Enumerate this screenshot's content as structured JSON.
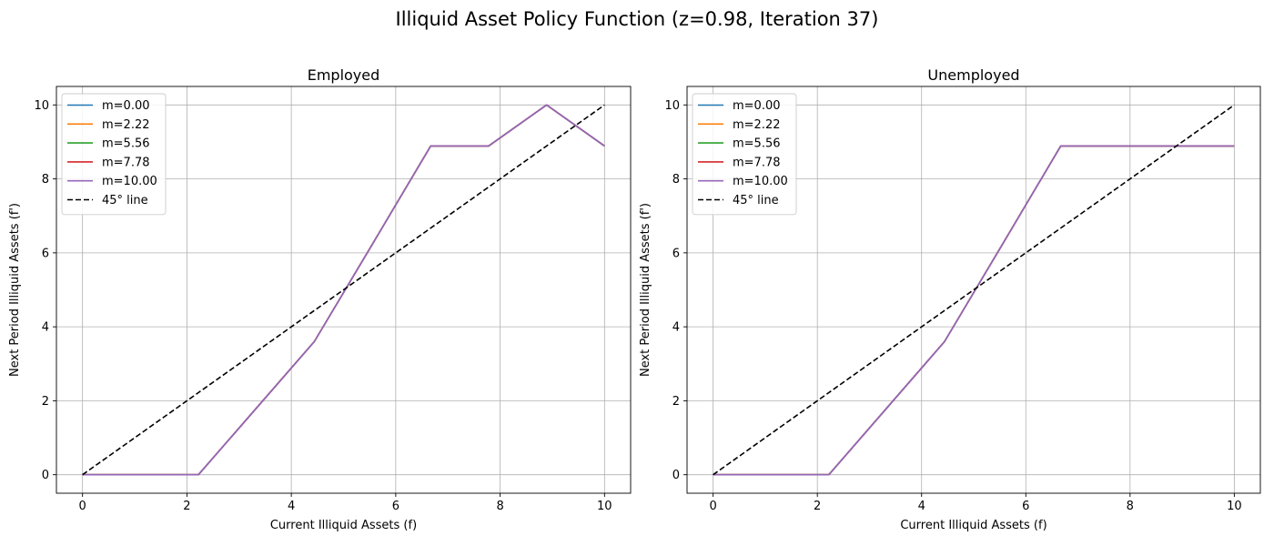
{
  "figure": {
    "suptitle": "Illiquid Asset Policy Function (z=0.98, Iteration 37)"
  },
  "chart_data": [
    {
      "type": "line",
      "title": "Employed",
      "xlabel": "Current Illiquid Assets (f)",
      "ylabel": "Next Period Illiquid Assets (f')",
      "xlim": [
        -0.5,
        10.5
      ],
      "ylim": [
        -0.5,
        10.5
      ],
      "xticks": [
        0,
        2,
        4,
        6,
        8,
        10
      ],
      "yticks": [
        0,
        2,
        4,
        6,
        8,
        10
      ],
      "grid": true,
      "legend_position": "upper-left",
      "series": [
        {
          "name": "m=0.00",
          "color": "#1f77b4",
          "style": "solid",
          "x": [
            0,
            1.11,
            2.22,
            3.33,
            4.44,
            5.56,
            6.67,
            7.78,
            8.89,
            10
          ],
          "y": [
            0,
            0,
            0,
            1.8,
            3.6,
            6.25,
            8.89,
            8.89,
            10,
            8.89
          ]
        },
        {
          "name": "m=2.22",
          "color": "#ff7f0e",
          "style": "solid",
          "x": [
            0,
            1.11,
            2.22,
            3.33,
            4.44,
            5.56,
            6.67,
            7.78,
            8.89,
            10
          ],
          "y": [
            0,
            0,
            0,
            1.8,
            3.6,
            6.25,
            8.89,
            8.89,
            10,
            8.89
          ]
        },
        {
          "name": "m=5.56",
          "color": "#2ca02c",
          "style": "solid",
          "x": [
            0,
            1.11,
            2.22,
            3.33,
            4.44,
            5.56,
            6.67,
            7.78,
            8.89,
            10
          ],
          "y": [
            0,
            0,
            0,
            1.8,
            3.6,
            6.25,
            8.89,
            8.89,
            10,
            8.89
          ]
        },
        {
          "name": "m=7.78",
          "color": "#d62728",
          "style": "solid",
          "x": [
            0,
            1.11,
            2.22,
            3.33,
            4.44,
            5.56,
            6.67,
            7.78,
            8.89,
            10
          ],
          "y": [
            0,
            0,
            0,
            1.8,
            3.6,
            6.25,
            8.89,
            8.89,
            10,
            8.89
          ]
        },
        {
          "name": "m=10.00",
          "color": "#9467bd",
          "style": "solid",
          "x": [
            0,
            1.11,
            2.22,
            3.33,
            4.44,
            5.56,
            6.67,
            7.78,
            8.89,
            10
          ],
          "y": [
            0,
            0,
            0,
            1.8,
            3.6,
            6.25,
            8.89,
            8.89,
            10,
            8.89
          ]
        },
        {
          "name": "45° line",
          "color": "#000000",
          "style": "dashed",
          "x": [
            0,
            10
          ],
          "y": [
            0,
            10
          ]
        }
      ]
    },
    {
      "type": "line",
      "title": "Unemployed",
      "xlabel": "Current Illiquid Assets (f)",
      "ylabel": "Next Period Illiquid Assets (f')",
      "xlim": [
        -0.5,
        10.5
      ],
      "ylim": [
        -0.5,
        10.5
      ],
      "xticks": [
        0,
        2,
        4,
        6,
        8,
        10
      ],
      "yticks": [
        0,
        2,
        4,
        6,
        8,
        10
      ],
      "grid": true,
      "legend_position": "upper-left",
      "series": [
        {
          "name": "m=0.00",
          "color": "#1f77b4",
          "style": "solid",
          "x": [
            0,
            1.11,
            2.22,
            3.33,
            4.44,
            5.56,
            6.67,
            7.78,
            8.89,
            10
          ],
          "y": [
            0,
            0,
            0,
            1.8,
            3.6,
            6.25,
            8.89,
            8.89,
            8.89,
            8.89
          ]
        },
        {
          "name": "m=2.22",
          "color": "#ff7f0e",
          "style": "solid",
          "x": [
            0,
            1.11,
            2.22,
            3.33,
            4.44,
            5.56,
            6.67,
            7.78,
            8.89,
            10
          ],
          "y": [
            0,
            0,
            0,
            1.8,
            3.6,
            6.25,
            8.89,
            8.89,
            8.89,
            8.89
          ]
        },
        {
          "name": "m=5.56",
          "color": "#2ca02c",
          "style": "solid",
          "x": [
            0,
            1.11,
            2.22,
            3.33,
            4.44,
            5.56,
            6.67,
            7.78,
            8.89,
            10
          ],
          "y": [
            0,
            0,
            0,
            1.8,
            3.6,
            6.25,
            8.89,
            8.89,
            8.89,
            8.89
          ]
        },
        {
          "name": "m=7.78",
          "color": "#d62728",
          "style": "solid",
          "x": [
            0,
            1.11,
            2.22,
            3.33,
            4.44,
            5.56,
            6.67,
            7.78,
            8.89,
            10
          ],
          "y": [
            0,
            0,
            0,
            1.8,
            3.6,
            6.25,
            8.89,
            8.89,
            8.89,
            8.89
          ]
        },
        {
          "name": "m=10.00",
          "color": "#9467bd",
          "style": "solid",
          "x": [
            0,
            1.11,
            2.22,
            3.33,
            4.44,
            5.56,
            6.67,
            7.78,
            8.89,
            10
          ],
          "y": [
            0,
            0,
            0,
            1.8,
            3.6,
            6.25,
            8.89,
            8.89,
            8.89,
            8.89
          ]
        },
        {
          "name": "45° line",
          "color": "#000000",
          "style": "dashed",
          "x": [
            0,
            10
          ],
          "y": [
            0,
            10
          ]
        }
      ]
    }
  ]
}
